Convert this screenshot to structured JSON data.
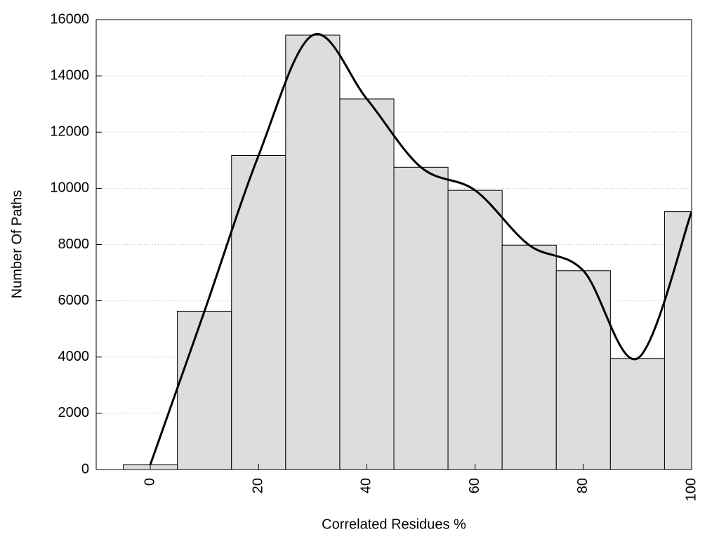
{
  "chart_data": {
    "type": "histogram",
    "xlabel": "Correlated Residues %",
    "ylabel": "Number Of Paths",
    "bins": [
      -5,
      5,
      15,
      25,
      35,
      45,
      55,
      65,
      75,
      85,
      95,
      105
    ],
    "counts": [
      175,
      5630,
      11170,
      15450,
      13180,
      10750,
      9930,
      7980,
      7070,
      3950,
      9170
    ],
    "x": [
      0,
      10,
      20,
      30,
      40,
      50,
      60,
      70,
      80,
      90,
      100
    ],
    "smooth_curve": true,
    "color": "#dddddd",
    "curve_color": "#000000",
    "xlim": [
      -10,
      100
    ],
    "xticks": [
      0,
      20,
      40,
      60,
      80,
      100
    ],
    "ylim": [
      0,
      16000
    ],
    "yticks": [
      0,
      2000,
      4000,
      6000,
      8000,
      10000,
      12000,
      14000,
      16000
    ],
    "grid": true
  }
}
